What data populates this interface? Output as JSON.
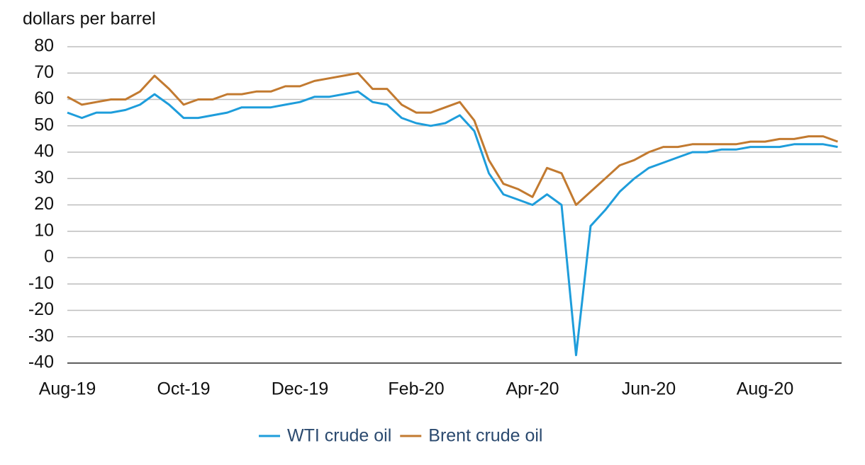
{
  "chart_data": {
    "type": "line",
    "subtitle": "dollars per barrel",
    "categories": [
      "Aug-19",
      null,
      null,
      null,
      null,
      null,
      null,
      null,
      "Oct-19",
      null,
      null,
      null,
      null,
      null,
      null,
      null,
      "Dec-19",
      null,
      null,
      null,
      null,
      null,
      null,
      null,
      "Feb-20",
      null,
      null,
      null,
      null,
      null,
      null,
      null,
      "Apr-20",
      null,
      null,
      null,
      null,
      null,
      null,
      null,
      "Jun-20",
      null,
      null,
      null,
      null,
      null,
      null,
      null,
      "Aug-20",
      null,
      null,
      null,
      null,
      null
    ],
    "series": [
      {
        "name": "WTI crude oil",
        "color": "#1e9ddb",
        "values": [
          55,
          53,
          55,
          55,
          56,
          58,
          62,
          58,
          53,
          53,
          54,
          55,
          57,
          57,
          57,
          58,
          59,
          61,
          61,
          62,
          63,
          59,
          58,
          53,
          51,
          50,
          51,
          54,
          48,
          32,
          24,
          22,
          20,
          24,
          20,
          -37,
          12,
          18,
          25,
          30,
          34,
          36,
          38,
          40,
          40,
          41,
          41,
          42,
          42,
          42,
          43,
          43,
          43,
          42
        ]
      },
      {
        "name": "Brent crude oil",
        "color": "#c27a30",
        "values": [
          61,
          58,
          59,
          60,
          60,
          63,
          69,
          64,
          58,
          60,
          60,
          62,
          62,
          63,
          63,
          65,
          65,
          67,
          68,
          69,
          70,
          64,
          64,
          58,
          55,
          55,
          57,
          59,
          52,
          37,
          28,
          26,
          23,
          34,
          32,
          20,
          25,
          30,
          35,
          37,
          40,
          42,
          42,
          43,
          43,
          43,
          43,
          44,
          44,
          45,
          45,
          46,
          46,
          44
        ]
      }
    ],
    "ylim": [
      -40,
      80
    ],
    "yticks": [
      -40,
      -30,
      -20,
      -10,
      0,
      10,
      20,
      30,
      40,
      50,
      60,
      70,
      80
    ],
    "grid": true,
    "legend": "bottom"
  }
}
